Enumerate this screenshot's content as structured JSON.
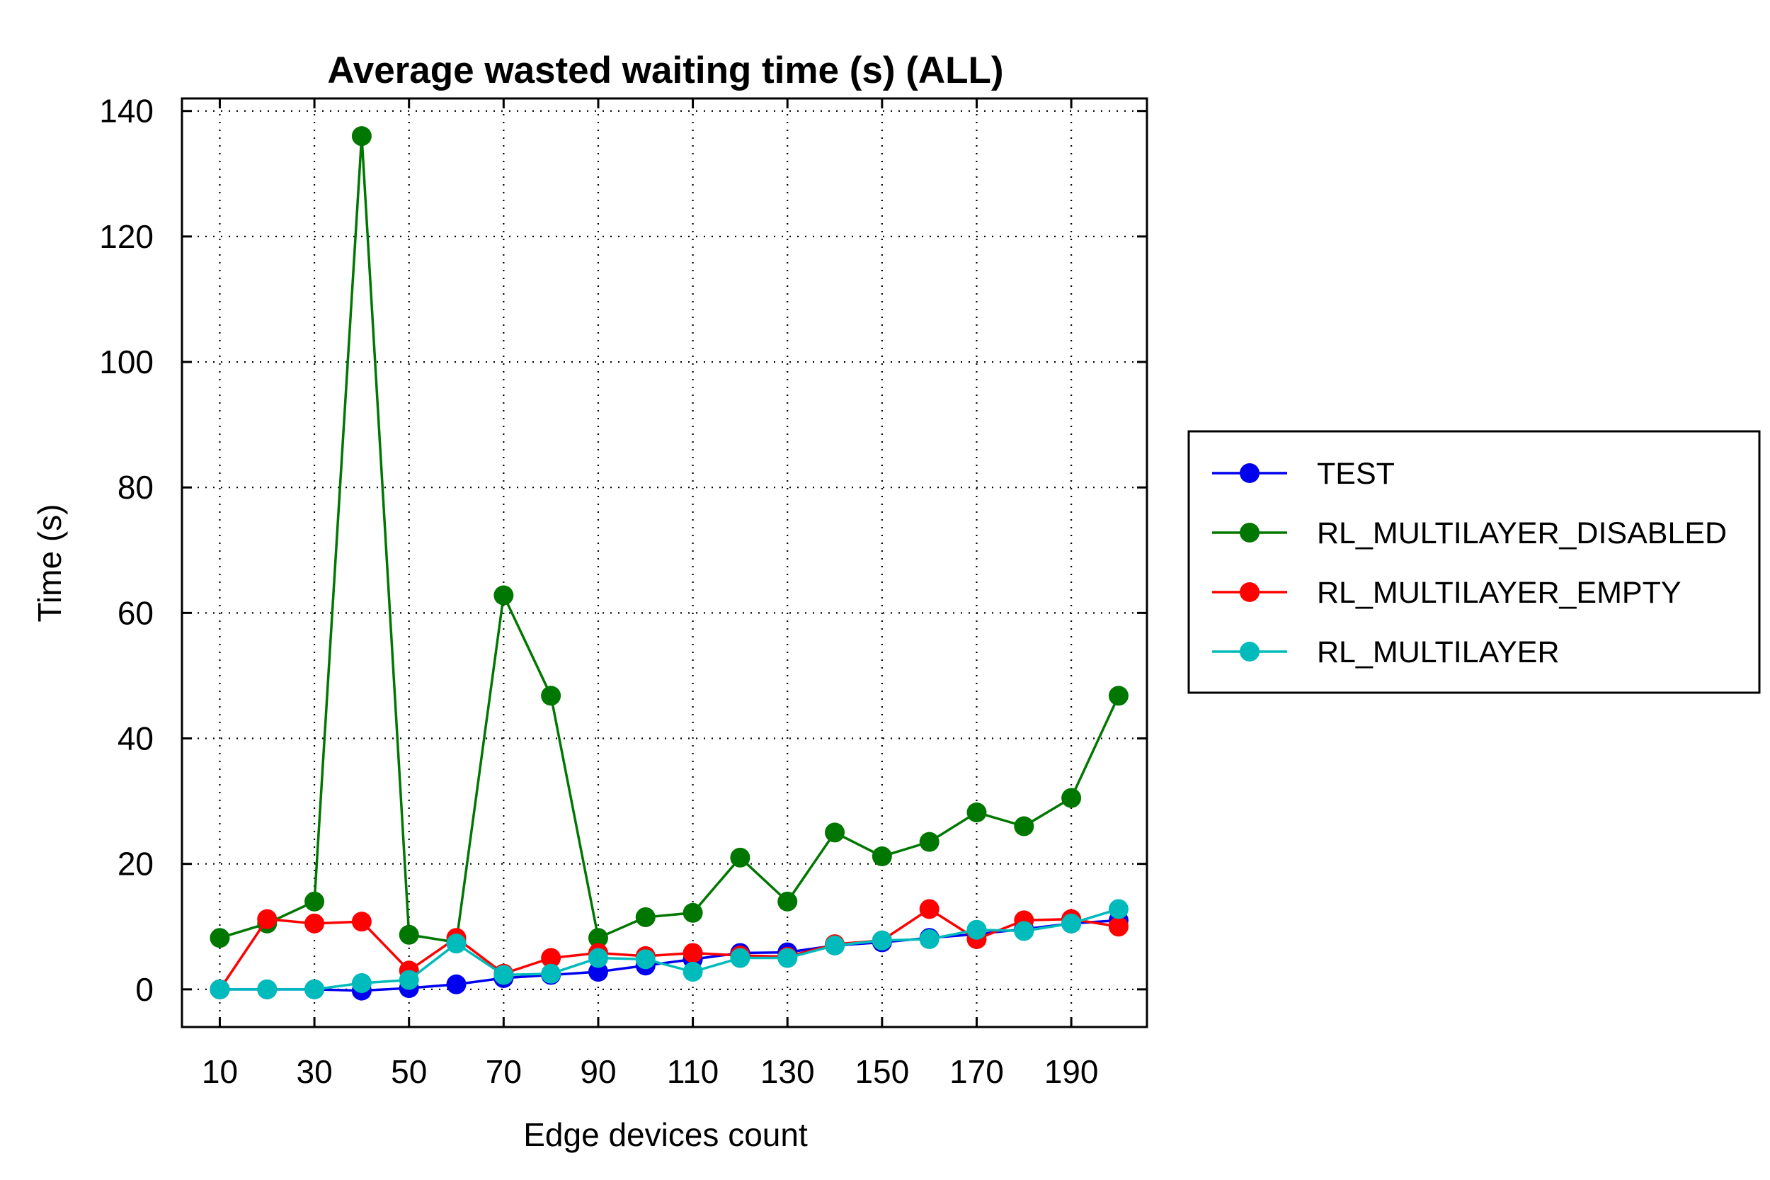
{
  "chart_data": {
    "type": "line",
    "title": "Average wasted waiting time (s) (ALL)",
    "xlabel": "Edge devices count",
    "ylabel": "Time (s)",
    "xlim": [
      2,
      206
    ],
    "ylim": [
      -6,
      142
    ],
    "x_ticks": [
      10,
      30,
      50,
      70,
      90,
      110,
      130,
      150,
      170,
      190
    ],
    "x_grid": [
      10,
      30,
      50,
      70,
      90,
      110,
      130,
      150,
      170,
      190
    ],
    "y_ticks": [
      0,
      20,
      40,
      60,
      80,
      100,
      120,
      140
    ],
    "grid": true,
    "grid_style": "dotted",
    "legend_position": "right",
    "x": [
      10,
      20,
      30,
      40,
      50,
      60,
      70,
      80,
      90,
      100,
      110,
      120,
      130,
      140,
      150,
      160,
      170,
      180,
      190,
      200
    ],
    "series": [
      {
        "name": "TEST",
        "color": "#0000ee",
        "values": [
          0.0,
          0.0,
          0.0,
          -0.2,
          0.2,
          0.8,
          1.8,
          2.3,
          2.8,
          3.8,
          4.8,
          5.8,
          5.9,
          7.0,
          7.5,
          8.2,
          8.8,
          9.6,
          10.5,
          11.0
        ]
      },
      {
        "name": "RL_MULTILAYER_DISABLED",
        "color": "#007700",
        "values": [
          8.2,
          10.5,
          14.0,
          136.0,
          8.7,
          7.5,
          62.8,
          46.8,
          8.2,
          11.5,
          12.2,
          21.0,
          14.0,
          25.0,
          21.2,
          23.5,
          28.2,
          26.0,
          30.5,
          46.8
        ]
      },
      {
        "name": "RL_MULTILAYER_EMPTY",
        "color": "#ff0000",
        "values": [
          0.0,
          11.2,
          10.5,
          10.8,
          3.0,
          8.2,
          2.5,
          5.0,
          5.8,
          5.3,
          5.8,
          5.4,
          5.2,
          7.2,
          7.8,
          12.8,
          8.0,
          11.0,
          11.2,
          10.0
        ]
      },
      {
        "name": "RL_MULTILAYER",
        "color": "#00bbbb",
        "values": [
          0.0,
          0.0,
          0.0,
          1.0,
          1.5,
          7.3,
          2.3,
          2.5,
          5.0,
          4.8,
          2.8,
          5.0,
          5.0,
          7.0,
          7.8,
          8.0,
          9.5,
          9.3,
          10.5,
          12.8
        ]
      }
    ]
  }
}
